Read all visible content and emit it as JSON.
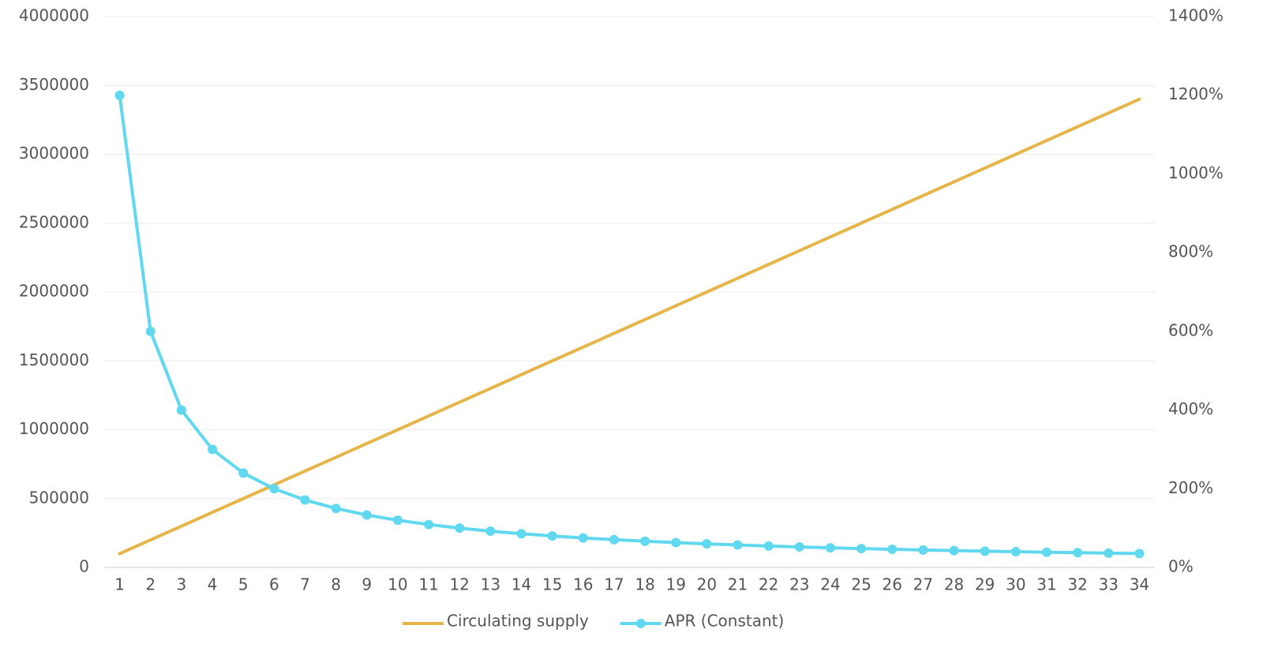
{
  "chart_data": {
    "type": "line",
    "categories": [
      1,
      2,
      3,
      4,
      5,
      6,
      7,
      8,
      9,
      10,
      11,
      12,
      13,
      14,
      15,
      16,
      17,
      18,
      19,
      20,
      21,
      22,
      23,
      24,
      25,
      26,
      27,
      28,
      29,
      30,
      31,
      32,
      33,
      34
    ],
    "series": [
      {
        "name": "Circulating supply",
        "color": "#e6b54a",
        "markers": false,
        "values": [
          100000,
          200000,
          300000,
          400000,
          500000,
          600000,
          700000,
          800000,
          900000,
          1000000,
          1100000,
          1200000,
          1300000,
          1400000,
          1500000,
          1600000,
          1700000,
          1800000,
          1900000,
          2000000,
          2100000,
          2200000,
          2300000,
          2400000,
          2500000,
          2600000,
          2700000,
          2800000,
          2900000,
          3000000,
          3100000,
          3200000,
          3300000,
          3400000
        ]
      },
      {
        "name": "APR (Constant)",
        "color": "#5fd8f0",
        "markers": true,
        "axis": "y2",
        "values": [
          1200,
          600,
          400,
          300,
          240,
          200,
          171.4,
          150,
          133.3,
          120,
          109.1,
          100,
          92.3,
          85.7,
          80,
          75,
          70.6,
          66.7,
          63.2,
          60,
          57.1,
          54.5,
          52.2,
          50,
          48,
          46.2,
          44.4,
          42.9,
          41.4,
          40,
          38.7,
          37.5,
          36.4,
          35.3
        ]
      }
    ],
    "ylim": [
      0,
      4000000
    ],
    "yticks": [
      0,
      500000,
      1000000,
      1500000,
      2000000,
      2500000,
      3000000,
      3500000,
      4000000
    ],
    "y2lim": [
      0,
      1400
    ],
    "y2ticks": [
      {
        "value": 0,
        "label": "0%"
      },
      {
        "value": 200,
        "label": "200%"
      },
      {
        "value": 400,
        "label": "400%"
      },
      {
        "value": 600,
        "label": "600%"
      },
      {
        "value": 800,
        "label": "800%"
      },
      {
        "value": 1000,
        "label": "1000%"
      },
      {
        "value": 1200,
        "label": "1200%"
      },
      {
        "value": 1400,
        "label": "1400%"
      }
    ],
    "grid": true,
    "legend": "bottom"
  }
}
